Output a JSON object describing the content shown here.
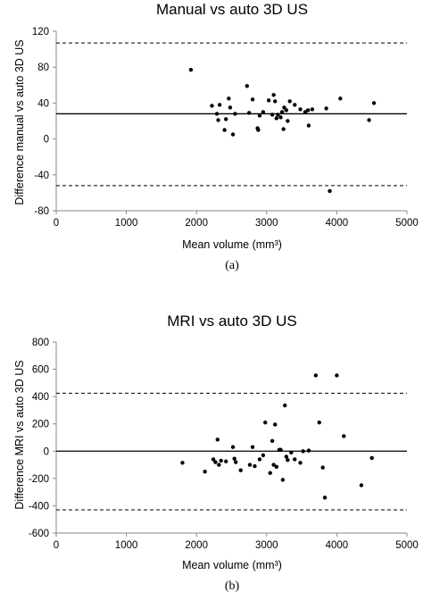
{
  "chart_data": [
    {
      "type": "scatter",
      "subtitle": "(a)",
      "title": "Manual vs auto 3D US",
      "xlabel": "Mean volume (mm³)",
      "ylabel": "Difference manual vs auto 3D US",
      "xlim": [
        0,
        5000
      ],
      "ylim": [
        -80,
        120
      ],
      "xticks": [
        "0",
        "1000",
        "2000",
        "3000",
        "4000",
        "5000"
      ],
      "yticks": [
        "-80",
        "-40",
        "0",
        "40",
        "80",
        "120"
      ],
      "grid": false,
      "mean_line": 28,
      "limits_of_agreement": [
        107,
        -52
      ],
      "points": [
        [
          1920,
          77
        ],
        [
          2220,
          37
        ],
        [
          2290,
          28
        ],
        [
          2310,
          21
        ],
        [
          2330,
          38
        ],
        [
          2400,
          10
        ],
        [
          2420,
          22
        ],
        [
          2460,
          45
        ],
        [
          2480,
          35
        ],
        [
          2520,
          5
        ],
        [
          2550,
          28
        ],
        [
          2720,
          59
        ],
        [
          2750,
          29
        ],
        [
          2800,
          44
        ],
        [
          2870,
          12
        ],
        [
          2880,
          10
        ],
        [
          2900,
          26
        ],
        [
          2950,
          30
        ],
        [
          3030,
          43
        ],
        [
          3080,
          27
        ],
        [
          3100,
          49
        ],
        [
          3120,
          42
        ],
        [
          3140,
          23
        ],
        [
          3160,
          27
        ],
        [
          3200,
          24
        ],
        [
          3220,
          30
        ],
        [
          3240,
          11
        ],
        [
          3250,
          35
        ],
        [
          3280,
          32
        ],
        [
          3300,
          20
        ],
        [
          3330,
          42
        ],
        [
          3400,
          38
        ],
        [
          3480,
          33
        ],
        [
          3550,
          30
        ],
        [
          3590,
          32
        ],
        [
          3600,
          15
        ],
        [
          3650,
          33
        ],
        [
          3850,
          34
        ],
        [
          3900,
          -58
        ],
        [
          4050,
          45
        ],
        [
          4460,
          21
        ],
        [
          4530,
          40
        ]
      ]
    },
    {
      "type": "scatter",
      "subtitle": "(b)",
      "title": "MRI vs auto 3D US",
      "xlabel": "Mean volume (mm³)",
      "ylabel": "Difference MRI vs auto 3D US",
      "xlim": [
        0,
        5000
      ],
      "ylim": [
        -600,
        800
      ],
      "xticks": [
        "0",
        "1000",
        "2000",
        "3000",
        "4000",
        "5000"
      ],
      "yticks": [
        "-600",
        "-400",
        "-200",
        "0",
        "200",
        "400",
        "600",
        "800"
      ],
      "grid": false,
      "mean_line": 0,
      "limits_of_agreement": [
        425,
        -430
      ],
      "points": [
        [
          1800,
          -85
        ],
        [
          2120,
          -150
        ],
        [
          2240,
          -60
        ],
        [
          2270,
          -80
        ],
        [
          2300,
          85
        ],
        [
          2320,
          -100
        ],
        [
          2350,
          -70
        ],
        [
          2420,
          -75
        ],
        [
          2520,
          30
        ],
        [
          2540,
          -55
        ],
        [
          2560,
          -80
        ],
        [
          2630,
          -140
        ],
        [
          2760,
          -100
        ],
        [
          2800,
          30
        ],
        [
          2830,
          -110
        ],
        [
          2900,
          -60
        ],
        [
          2950,
          -30
        ],
        [
          2980,
          210
        ],
        [
          3050,
          -160
        ],
        [
          3080,
          75
        ],
        [
          3100,
          -100
        ],
        [
          3120,
          195
        ],
        [
          3140,
          -115
        ],
        [
          3180,
          10
        ],
        [
          3200,
          10
        ],
        [
          3230,
          -210
        ],
        [
          3260,
          335
        ],
        [
          3280,
          -40
        ],
        [
          3300,
          -65
        ],
        [
          3350,
          -10
        ],
        [
          3400,
          -60
        ],
        [
          3480,
          -85
        ],
        [
          3520,
          0
        ],
        [
          3600,
          5
        ],
        [
          3700,
          555
        ],
        [
          3750,
          210
        ],
        [
          3800,
          -120
        ],
        [
          3830,
          -340
        ],
        [
          4000,
          555
        ],
        [
          4100,
          110
        ],
        [
          4350,
          -250
        ],
        [
          4500,
          -50
        ]
      ]
    }
  ]
}
